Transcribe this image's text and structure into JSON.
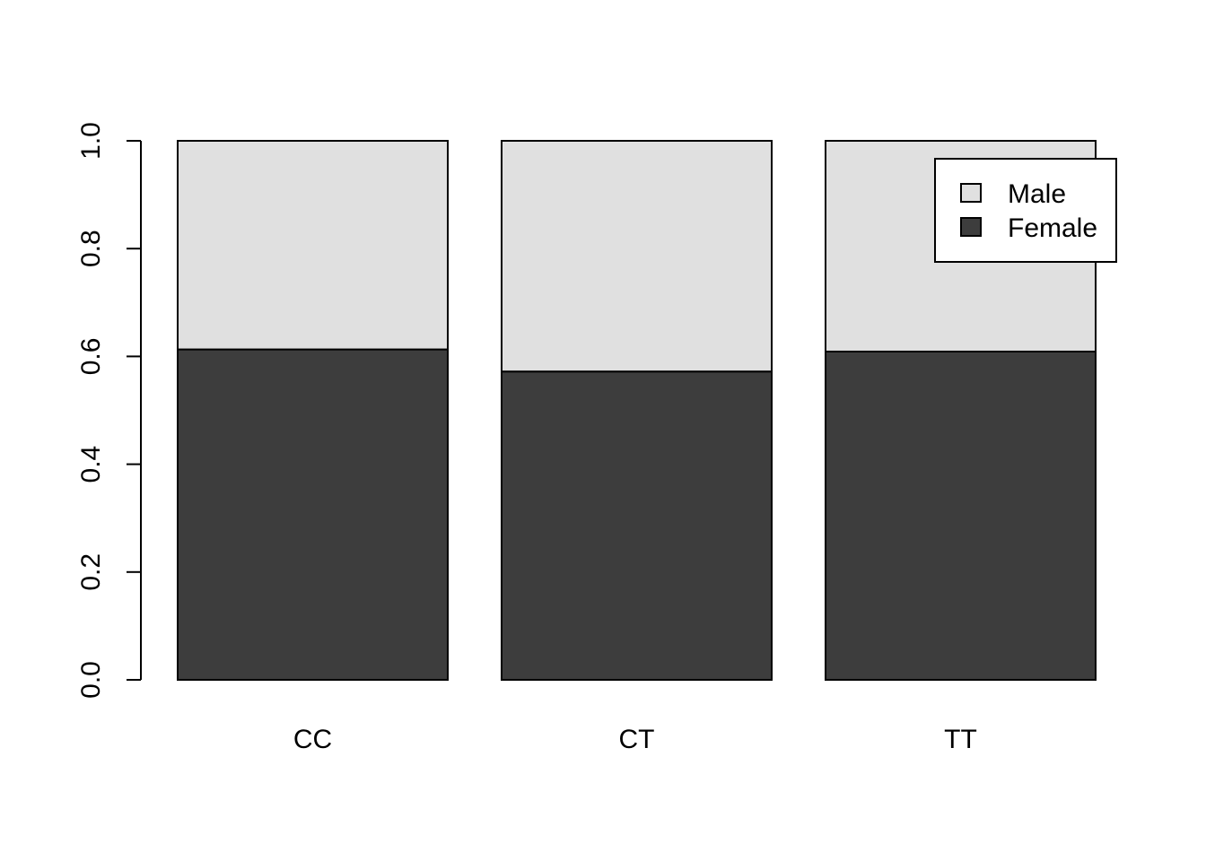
{
  "chart_data": {
    "type": "bar",
    "stacked": true,
    "categories": [
      "CC",
      "CT",
      "TT"
    ],
    "series": [
      {
        "name": "Female",
        "values": [
          0.613,
          0.572,
          0.609
        ],
        "color": "#3d3d3d"
      },
      {
        "name": "Male",
        "values": [
          0.387,
          0.428,
          0.391
        ],
        "color": "#e0e0e0"
      }
    ],
    "title": "",
    "xlabel": "",
    "ylabel": "",
    "ylim": [
      0,
      1
    ],
    "yticks": [
      "0.0",
      "0.2",
      "0.4",
      "0.6",
      "0.8",
      "1.0"
    ],
    "grid": false,
    "legend": {
      "position": "top-right",
      "entries": [
        {
          "label": "Male",
          "color": "#e0e0e0"
        },
        {
          "label": "Female",
          "color": "#3d3d3d"
        }
      ]
    }
  }
}
